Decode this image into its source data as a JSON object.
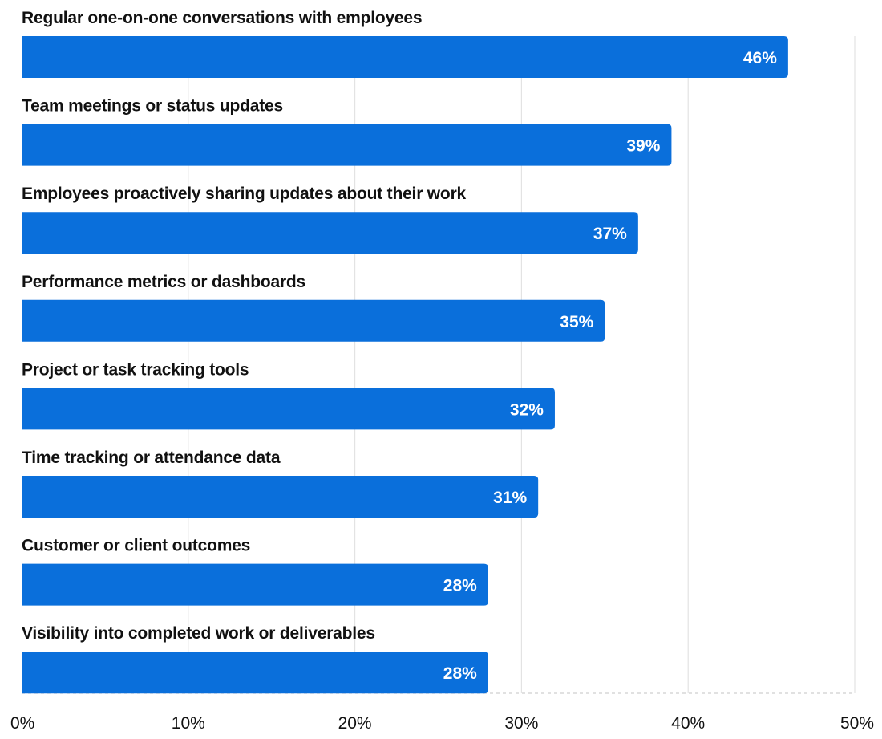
{
  "chart_data": {
    "type": "bar",
    "orientation": "horizontal",
    "categories": [
      "Regular one-on-one conversations with employees",
      "Team meetings or status updates",
      "Employees proactively sharing updates about their work",
      "Performance metrics or dashboards",
      "Project or task tracking tools",
      "Time tracking or attendance data",
      "Customer or client outcomes",
      "Visibility into completed work or deliverables"
    ],
    "values": [
      46,
      39,
      37,
      35,
      32,
      31,
      28,
      28
    ],
    "value_labels": [
      "46%",
      "39%",
      "37%",
      "35%",
      "32%",
      "31%",
      "28%",
      "28%"
    ],
    "x_ticks": [
      0,
      10,
      20,
      30,
      40,
      50
    ],
    "x_tick_labels": [
      "0%",
      "10%",
      "20%",
      "30%",
      "40%",
      "50%"
    ],
    "xlim": [
      0,
      50
    ],
    "title": "",
    "xlabel": "",
    "ylabel": "",
    "grid": true,
    "legend": "none",
    "colors": {
      "bar": "#0a6fdb",
      "grid": "#e3e3e3",
      "axis": "#cfcfcf",
      "text": "#111111",
      "value_text": "#ffffff"
    }
  }
}
